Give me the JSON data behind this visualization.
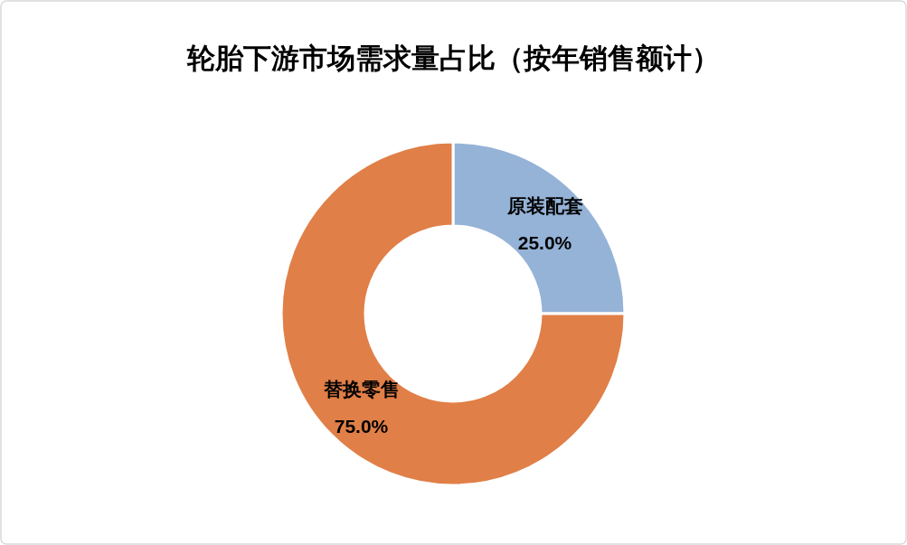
{
  "chart_data": {
    "type": "donut",
    "title": "轮胎下游市场需求量占比（按年销售额计）",
    "categories": [
      "原装配套",
      "替换零售"
    ],
    "values": [
      25,
      75
    ],
    "colors": [
      "#95b3d7",
      "#e07f47"
    ],
    "value_labels": [
      "25.0%",
      "75.0%"
    ]
  }
}
